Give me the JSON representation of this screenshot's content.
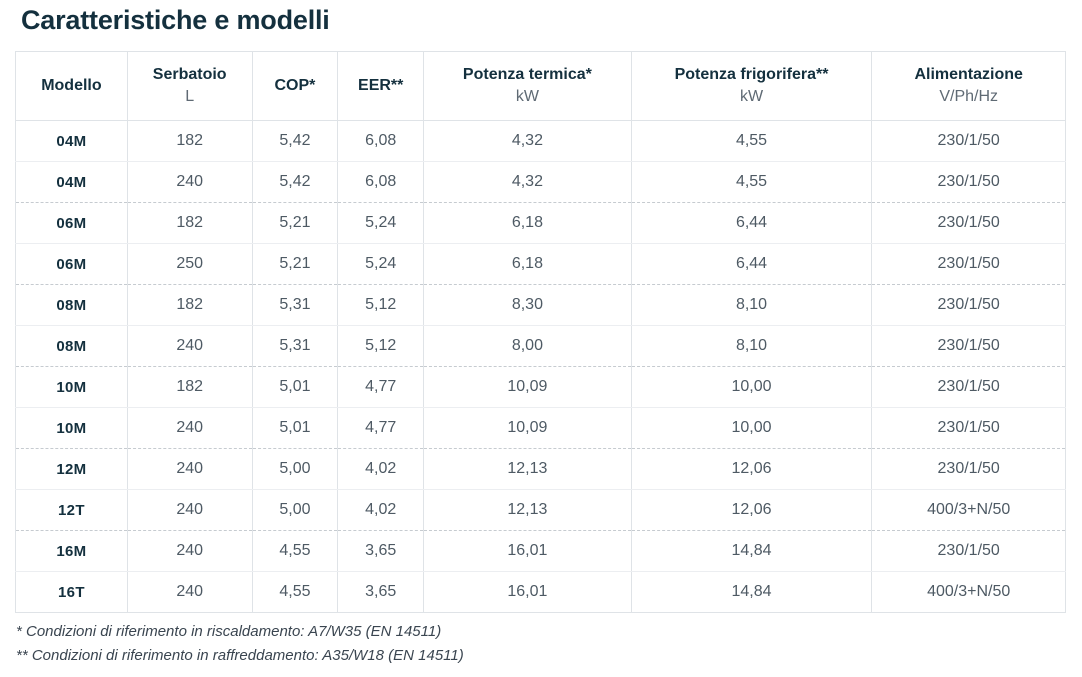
{
  "page": {
    "title": "Caratteristiche e modelli"
  },
  "table": {
    "columns": [
      {
        "label": "Modello",
        "sub": ""
      },
      {
        "label": "Serbatoio",
        "sub": "L"
      },
      {
        "label": "COP*",
        "sub": ""
      },
      {
        "label": "EER**",
        "sub": ""
      },
      {
        "label": "Potenza termica*",
        "sub": "kW"
      },
      {
        "label": "Potenza frigorifera**",
        "sub": "kW"
      },
      {
        "label": "Alimentazione",
        "sub": "V/Ph/Hz"
      }
    ],
    "rows": [
      [
        "04M",
        "182",
        "5,42",
        "6,08",
        "4,32",
        "4,55",
        "230/1/50"
      ],
      [
        "04M",
        "240",
        "5,42",
        "6,08",
        "4,32",
        "4,55",
        "230/1/50"
      ],
      [
        "06M",
        "182",
        "5,21",
        "5,24",
        "6,18",
        "6,44",
        "230/1/50"
      ],
      [
        "06M",
        "250",
        "5,21",
        "5,24",
        "6,18",
        "6,44",
        "230/1/50"
      ],
      [
        "08M",
        "182",
        "5,31",
        "5,12",
        "8,30",
        "8,10",
        "230/1/50"
      ],
      [
        "08M",
        "240",
        "5,31",
        "5,12",
        "8,00",
        "8,10",
        "230/1/50"
      ],
      [
        "10M",
        "182",
        "5,01",
        "4,77",
        "10,09",
        "10,00",
        "230/1/50"
      ],
      [
        "10M",
        "240",
        "5,01",
        "4,77",
        "10,09",
        "10,00",
        "230/1/50"
      ],
      [
        "12M",
        "240",
        "5,00",
        "4,02",
        "12,13",
        "12,06",
        "230/1/50"
      ],
      [
        "12T",
        "240",
        "5,00",
        "4,02",
        "12,13",
        "12,06",
        "400/3+N/50"
      ],
      [
        "16M",
        "240",
        "4,55",
        "3,65",
        "16,01",
        "14,84",
        "230/1/50"
      ],
      [
        "16T",
        "240",
        "4,55",
        "3,65",
        "16,01",
        "14,84",
        "400/3+N/50"
      ]
    ]
  },
  "footnotes": [
    "* Condizioni di riferimento in riscaldamento: A7/W35 (EN 14511)",
    "** Condizioni di riferimento in raffreddamento: A35/W18 (EN 14511)"
  ],
  "colors": {
    "title": "#14303e",
    "header_text": "#14303e",
    "subheader_text": "#5f6a74",
    "cell_text": "#4e5a64",
    "model_text": "#14303e",
    "border": "#dfe3e7",
    "group_border": "#c6cbd0",
    "background": "#ffffff"
  }
}
